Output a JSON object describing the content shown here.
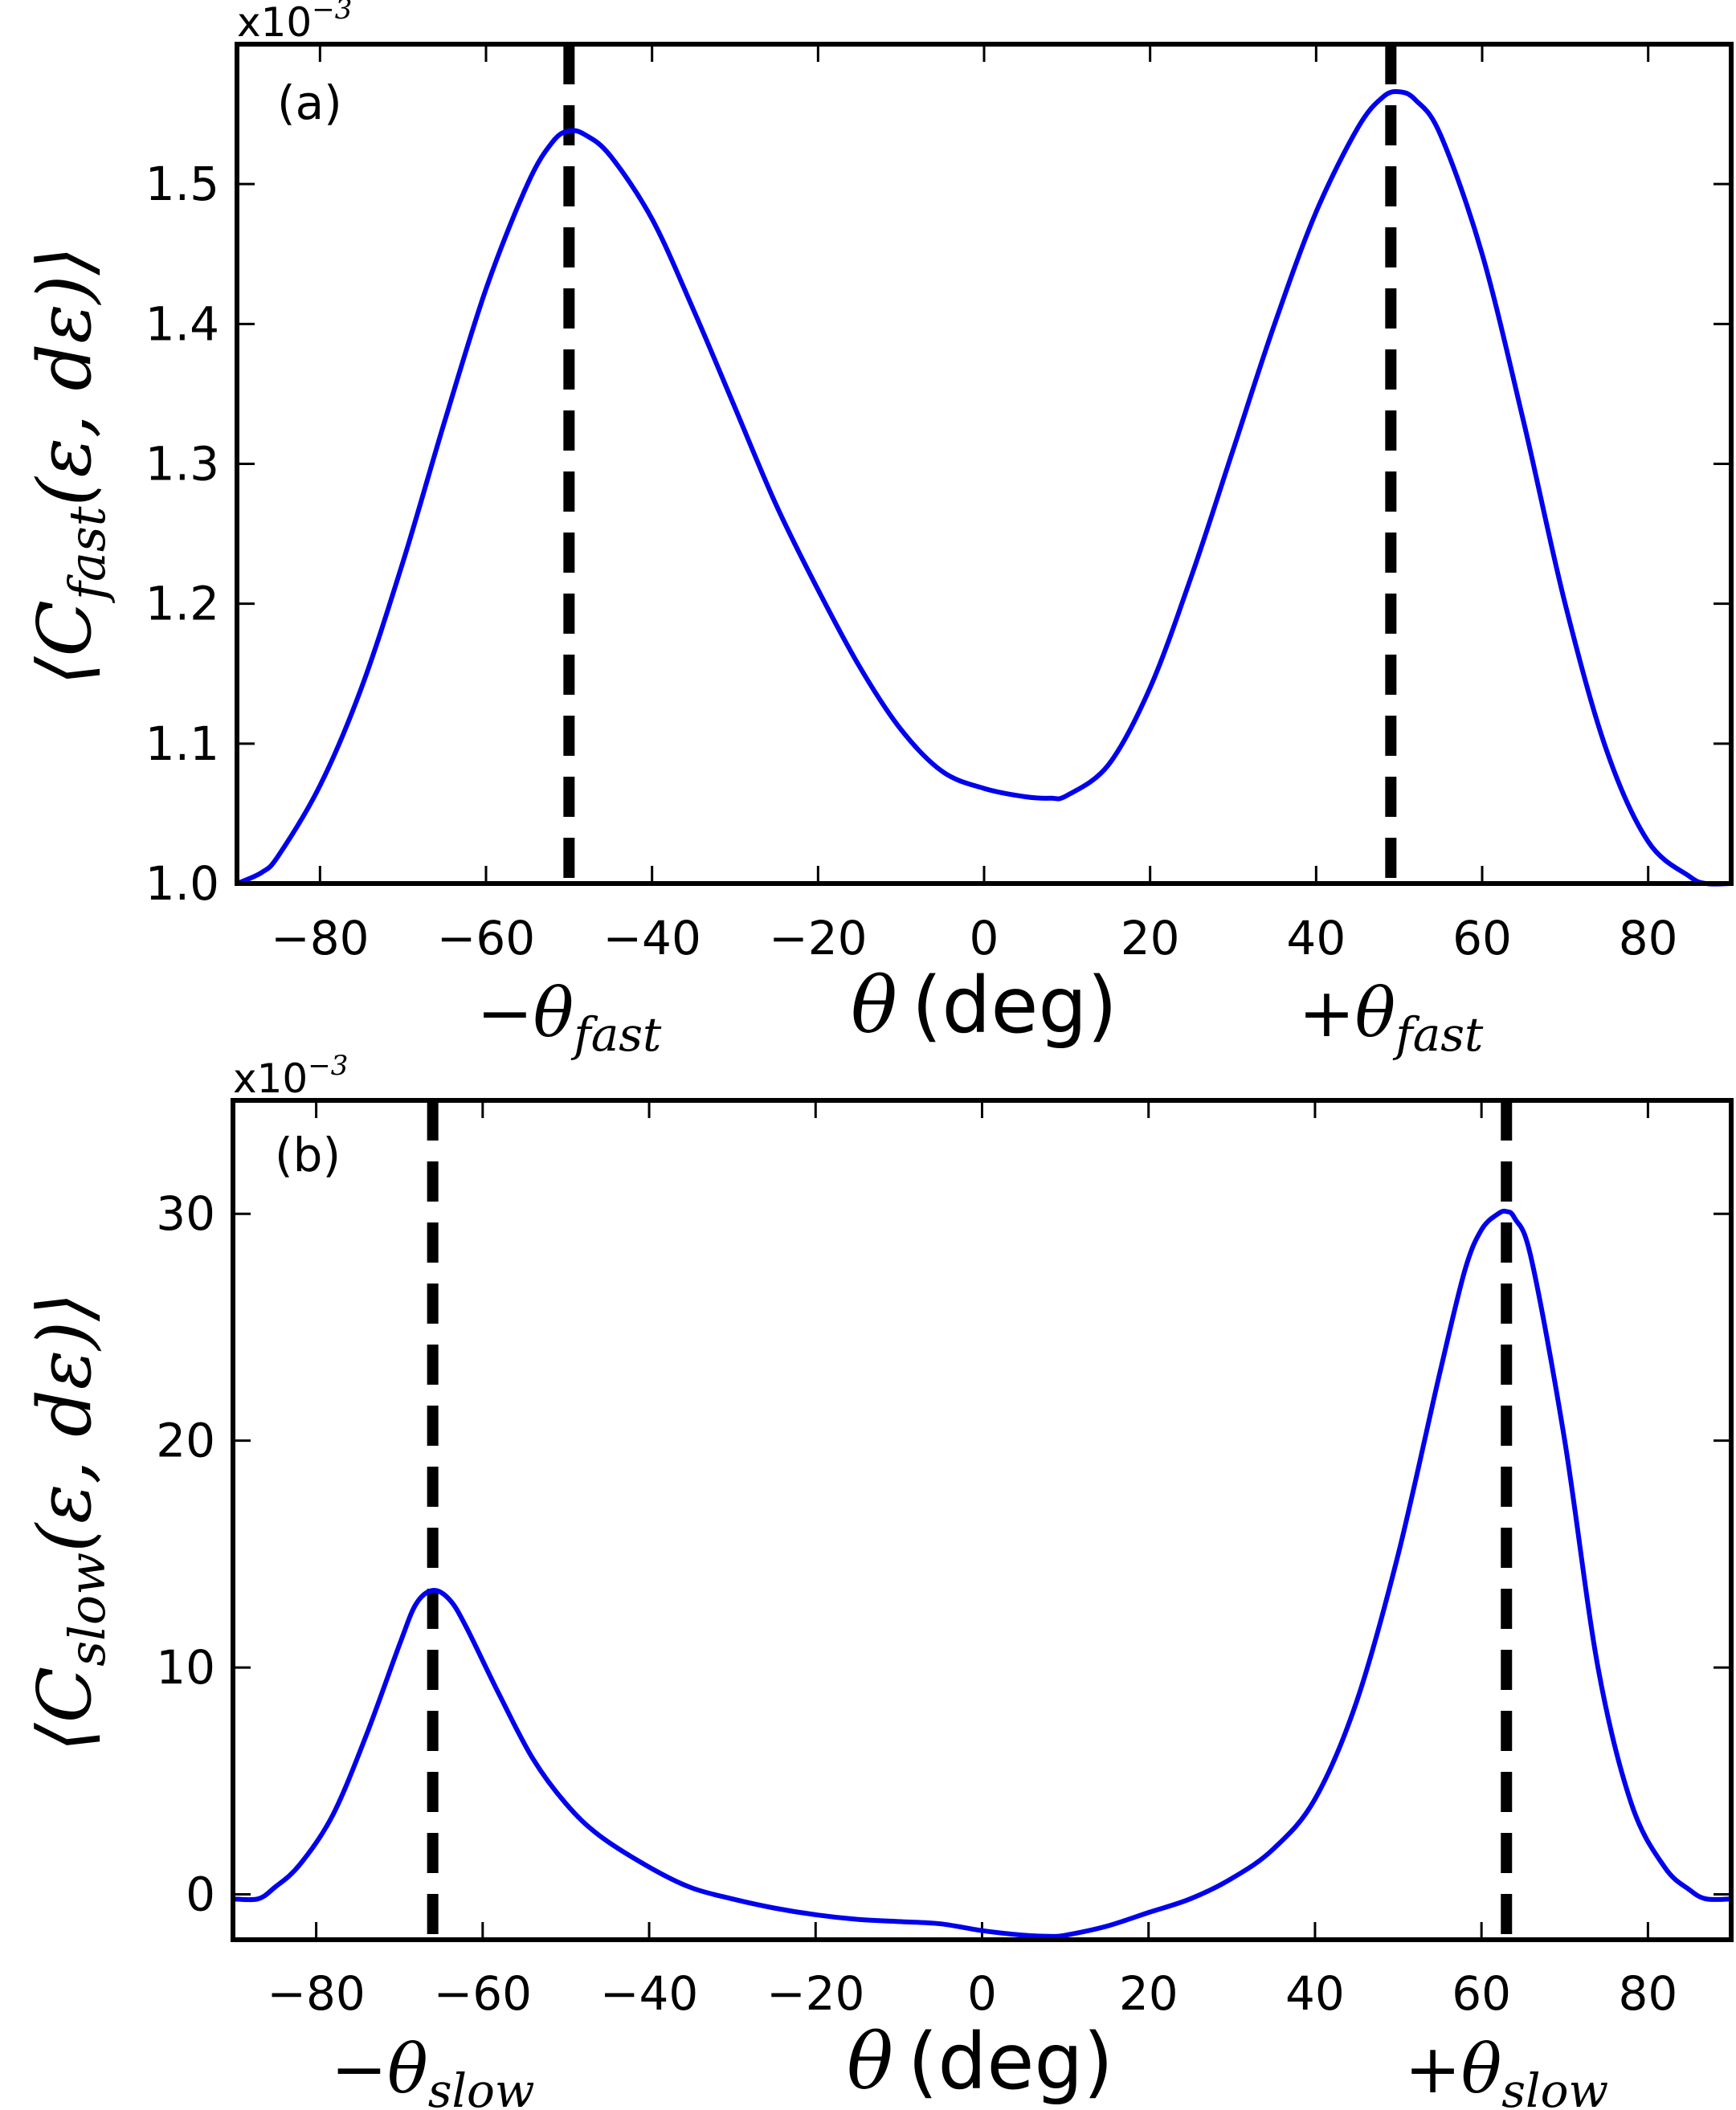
{
  "chart_data": [
    {
      "type": "line",
      "panel_label": "(a)",
      "xlabel_symbol": "θ",
      "xlabel_unit": "(deg)",
      "ylabel": "⟨C_fast(ε, dε)⟩",
      "ylabel_prefix": "⟨C",
      "ylabel_sub": "fast",
      "ylabel_suffix": "(ε, dε)⟩",
      "multiplier_base": "x10",
      "multiplier_exp": "−3",
      "xlim": [
        -90,
        90
      ],
      "ylim": [
        1.0,
        1.6
      ],
      "x_ticks": [
        -80,
        -60,
        -40,
        -20,
        0,
        20,
        40,
        60,
        80
      ],
      "x_tick_labels": [
        "−80",
        "−60",
        "−40",
        "−20",
        "0",
        "20",
        "40",
        "60",
        "80"
      ],
      "y_ticks": [
        1.0,
        1.1,
        1.2,
        1.3,
        1.4,
        1.5
      ],
      "y_tick_labels": [
        "1.0",
        "1.1",
        "1.2",
        "1.3",
        "1.4",
        "1.5"
      ],
      "line_color": "#0000ee",
      "vlines": [
        {
          "x": -50,
          "label_sign": "−",
          "label_symbol": "θ",
          "label_sub": "fast"
        },
        {
          "x": 49,
          "label_sign": "+",
          "label_symbol": "θ",
          "label_sub": "fast"
        }
      ],
      "series": [
        {
          "name": "C_fast",
          "x": [
            -90,
            -87,
            -85,
            -80,
            -75,
            -70,
            -65,
            -60,
            -55,
            -52,
            -50,
            -48,
            -45,
            -40,
            -35,
            -30,
            -25,
            -20,
            -15,
            -10,
            -5,
            0,
            5,
            8,
            10,
            15,
            20,
            25,
            30,
            35,
            40,
            45,
            48,
            50,
            52,
            55,
            60,
            65,
            70,
            75,
            80,
            85,
            87,
            90
          ],
          "y": [
            1.0,
            1.008,
            1.02,
            1.07,
            1.14,
            1.23,
            1.33,
            1.425,
            1.5,
            1.53,
            1.538,
            1.535,
            1.52,
            1.475,
            1.41,
            1.34,
            1.27,
            1.21,
            1.155,
            1.11,
            1.08,
            1.068,
            1.062,
            1.061,
            1.063,
            1.085,
            1.14,
            1.22,
            1.31,
            1.4,
            1.48,
            1.54,
            1.562,
            1.566,
            1.56,
            1.535,
            1.45,
            1.33,
            1.2,
            1.095,
            1.03,
            1.005,
            1.0,
            1.0
          ]
        }
      ]
    },
    {
      "type": "line",
      "panel_label": "(b)",
      "xlabel_symbol": "θ",
      "xlabel_unit": "(deg)",
      "ylabel": "⟨C_slow(ε, dε)⟩",
      "ylabel_prefix": "⟨C",
      "ylabel_sub": "slow",
      "ylabel_suffix": "(ε, dε)⟩",
      "multiplier_base": "x10",
      "multiplier_exp": "−3",
      "xlim": [
        -90,
        90
      ],
      "ylim": [
        -2,
        35
      ],
      "x_ticks": [
        -80,
        -60,
        -40,
        -20,
        0,
        20,
        40,
        60,
        80
      ],
      "x_tick_labels": [
        "−80",
        "−60",
        "−40",
        "−20",
        "0",
        "20",
        "40",
        "60",
        "80"
      ],
      "y_ticks": [
        0,
        10,
        20,
        30
      ],
      "y_tick_labels": [
        "0",
        "10",
        "20",
        "30"
      ],
      "line_color": "#0000ee",
      "vlines": [
        {
          "x": -66,
          "label_sign": "−",
          "label_symbol": "θ",
          "label_sub": "slow"
        },
        {
          "x": 63,
          "label_sign": "+",
          "label_symbol": "θ",
          "label_sub": "slow"
        }
      ],
      "series": [
        {
          "name": "C_slow",
          "x": [
            -90,
            -87,
            -85,
            -82,
            -78,
            -74,
            -70,
            -68,
            -66,
            -64,
            -62,
            -58,
            -54,
            -50,
            -46,
            -40,
            -35,
            -30,
            -25,
            -20,
            -15,
            -10,
            -5,
            0,
            5,
            8,
            10,
            15,
            20,
            25,
            30,
            35,
            40,
            45,
            50,
            55,
            58,
            60,
            62,
            63,
            64,
            66,
            70,
            74,
            78,
            82,
            85,
            87,
            90
          ],
          "y": [
            -0.2,
            -0.2,
            0.3,
            1.3,
            3.5,
            7.0,
            11.0,
            12.8,
            13.4,
            13.0,
            11.8,
            8.8,
            6.0,
            4.0,
            2.6,
            1.2,
            0.3,
            -0.2,
            -0.6,
            -0.9,
            -1.1,
            -1.2,
            -1.3,
            -1.6,
            -1.8,
            -1.85,
            -1.8,
            -1.4,
            -0.8,
            -0.2,
            0.7,
            2.0,
            4.2,
            8.5,
            15.0,
            23.0,
            27.5,
            29.3,
            30.0,
            30.1,
            29.8,
            28.0,
            20.0,
            10.0,
            4.0,
            1.2,
            0.2,
            -0.2,
            -0.2
          ]
        }
      ]
    }
  ]
}
